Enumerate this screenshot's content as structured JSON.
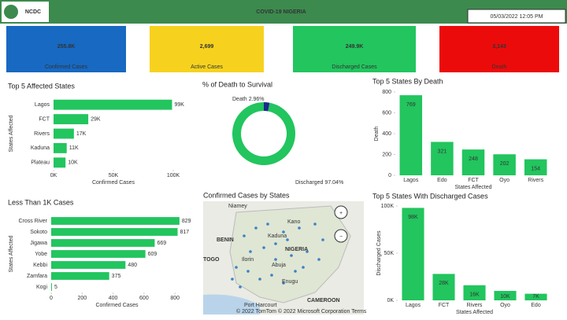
{
  "header": {
    "title": "COVID-19 NIGERIA",
    "datetime": "05/03/2022 12:05 PM",
    "logo_text": "NCDC",
    "color": "#3c8a4e"
  },
  "kpis": [
    {
      "value": "255.8K",
      "label": "Confirmed Cases",
      "color": "#1769c2"
    },
    {
      "value": "2,699",
      "label": "Active Cases",
      "color": "#f6d21f"
    },
    {
      "value": "249.9K",
      "label": "Discharged Cases",
      "color": "#22c55e"
    },
    {
      "value": "3,143",
      "label": "Death",
      "color": "#ec0b0b"
    }
  ],
  "chart_data": [
    {
      "type": "bar",
      "orientation": "horizontal",
      "title": "Top 5 Affected States",
      "x_label": "Confirmed Cases",
      "y_label": "States Affected",
      "categories": [
        "Lagos",
        "FCT",
        "Rivers",
        "Kaduna",
        "Plateau"
      ],
      "values": [
        99000,
        29000,
        17000,
        11000,
        10000
      ],
      "value_labels": [
        "99K",
        "29K",
        "17K",
        "11K",
        "10K"
      ],
      "color": "#22c55e",
      "xlim": [
        0,
        100000
      ],
      "xticks": [
        {
          "value": 0,
          "label": "0K"
        },
        {
          "value": 50000,
          "label": "50K"
        },
        {
          "value": 100000,
          "label": "100K"
        }
      ]
    },
    {
      "type": "pie",
      "donut": true,
      "title": "% of Death to Survival",
      "categories": [
        "Death",
        "Discharged"
      ],
      "values": [
        2.96,
        97.04
      ],
      "value_labels": [
        "2.96%",
        "97.04%"
      ],
      "colors": [
        "#1b2a8a",
        "#22c55e"
      ]
    },
    {
      "type": "bar",
      "orientation": "vertical",
      "title": "Top 5 States By Death",
      "x_label": "States Affected",
      "y_label": "Death",
      "categories": [
        "Lagos",
        "Edo",
        "FCT",
        "Oyo",
        "Rivers"
      ],
      "values": [
        769,
        321,
        248,
        202,
        154
      ],
      "color": "#22c55e",
      "ylim": [
        0,
        800
      ],
      "yticks": [
        0,
        200,
        400,
        600,
        800
      ]
    },
    {
      "type": "bar",
      "orientation": "horizontal",
      "title": "Less Than 1K Cases",
      "x_label": "Confirmed Cases",
      "y_label": "States Affected",
      "categories": [
        "Cross River",
        "Sokoto",
        "Jigawa",
        "Yobe",
        "Kebbi",
        "Zamfara",
        "Kogi"
      ],
      "values": [
        829,
        817,
        669,
        609,
        480,
        375,
        5
      ],
      "color": "#22c55e",
      "xlim": [
        0,
        850
      ],
      "xticks": [
        0,
        200,
        400,
        600,
        800
      ]
    },
    {
      "type": "bar",
      "orientation": "vertical",
      "title": "Top 5 States With Discharged Cases",
      "x_label": "States Affected",
      "y_label": "Discharged Cases",
      "categories": [
        "Lagos",
        "FCT",
        "Rivers",
        "Oyo",
        "Edo"
      ],
      "values": [
        98000,
        28000,
        16000,
        10000,
        7000
      ],
      "value_labels": [
        "98K",
        "28K",
        "16K",
        "10K",
        "7K"
      ],
      "color": "#22c55e",
      "ylim": [
        0,
        100000
      ],
      "yticks": [
        {
          "value": 0,
          "label": "0K"
        },
        {
          "value": 50000,
          "label": "50K"
        },
        {
          "value": 100000,
          "label": "100K"
        }
      ]
    }
  ],
  "map": {
    "title": "Confirmed Cases by States",
    "places": [
      {
        "name": "Niamey",
        "big": false
      },
      {
        "name": "Kano",
        "big": false
      },
      {
        "name": "BENIN",
        "big": true
      },
      {
        "name": "Kaduna",
        "big": false
      },
      {
        "name": "NIGERIA",
        "big": true
      },
      {
        "name": "TOGO",
        "big": true
      },
      {
        "name": "Ilorin",
        "big": false
      },
      {
        "name": "Abuja",
        "big": false
      },
      {
        "name": "Enugu",
        "big": false
      },
      {
        "name": "Port Harcourt",
        "big": false
      },
      {
        "name": "CAMEROON",
        "big": true
      }
    ],
    "attribution": "© 2022 TomTom © 2022 Microsoft Corporation Terms"
  }
}
